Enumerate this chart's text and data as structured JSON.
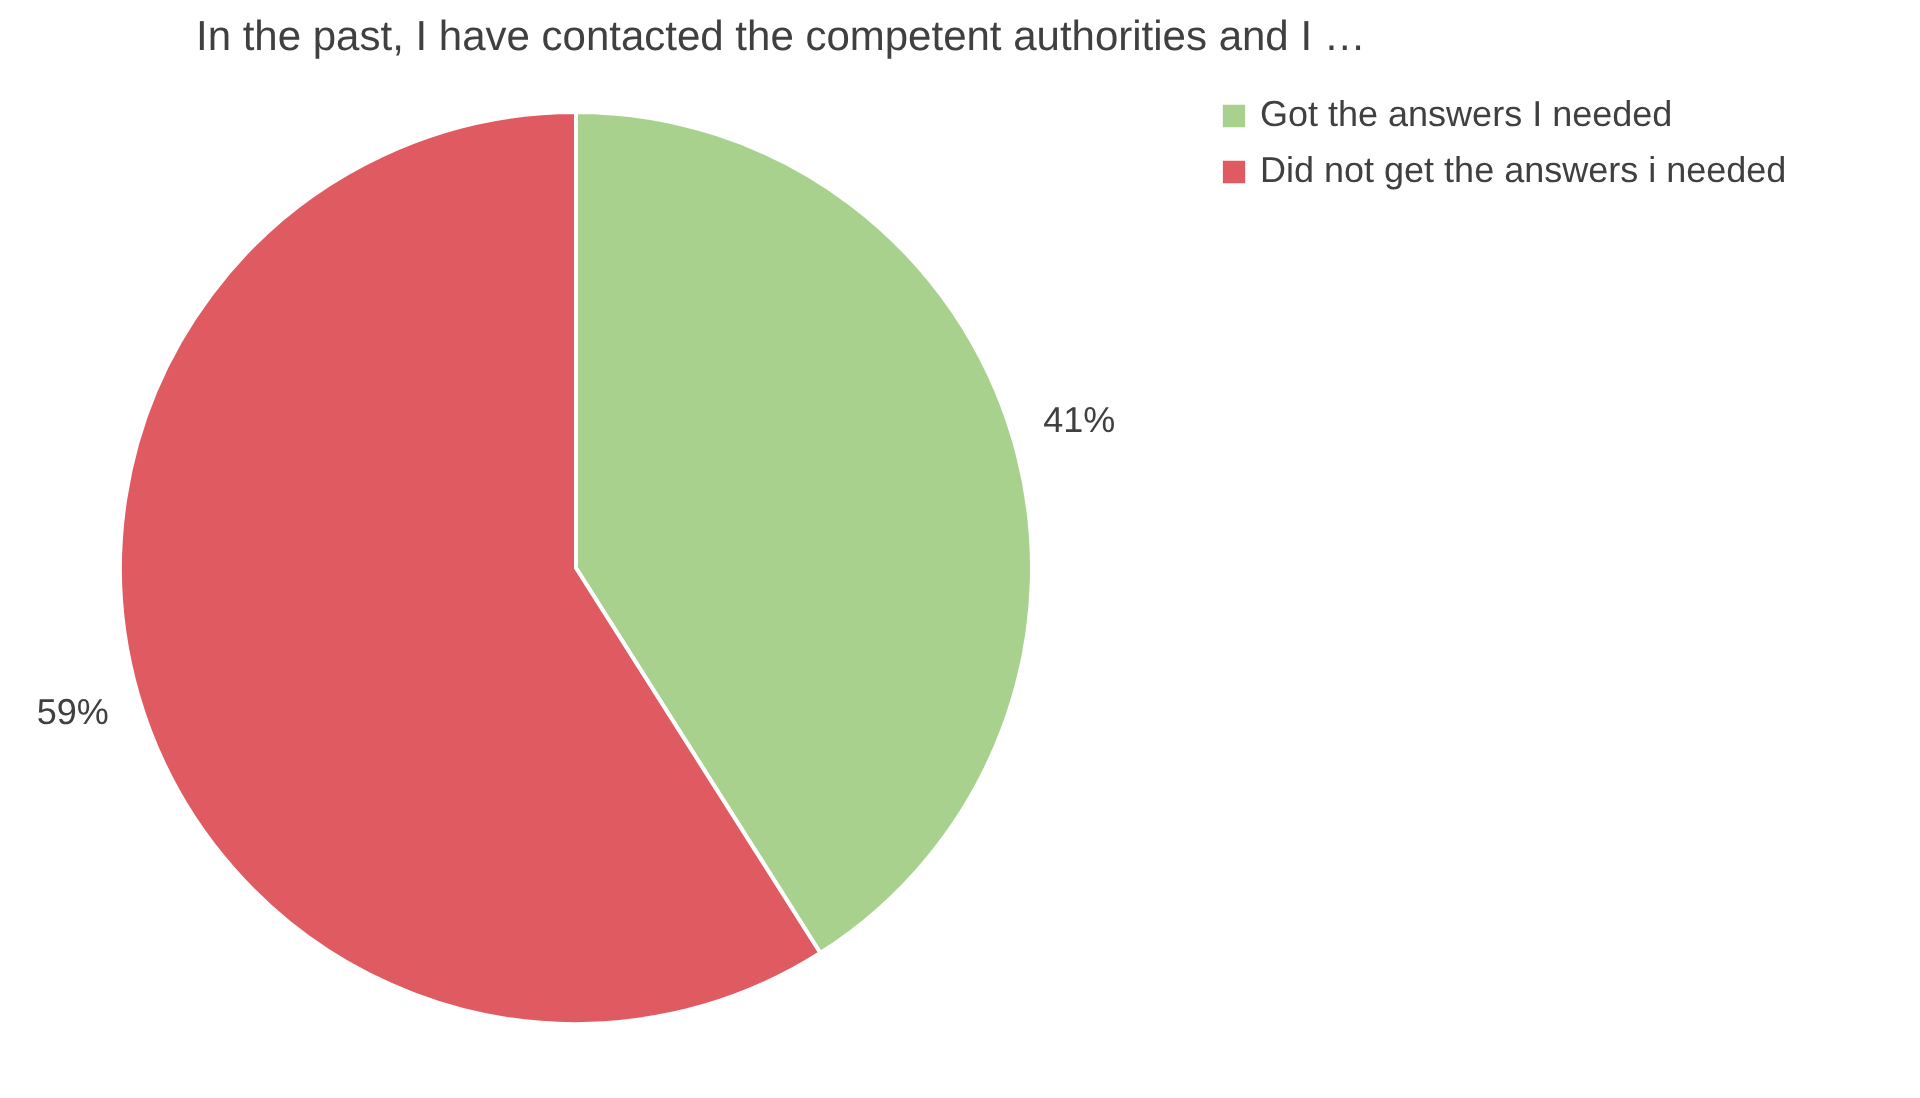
{
  "chart_data": {
    "type": "pie",
    "title": "In the past, I have contacted the competent authorities and I …",
    "categories": [
      "Got the answers I needed",
      "Did not get the answers i needed"
    ],
    "values": [
      41,
      59
    ],
    "colors": [
      "#a9d18e",
      "#e05a62"
    ],
    "value_labels": [
      "41%",
      "59%"
    ],
    "legend": "right"
  }
}
